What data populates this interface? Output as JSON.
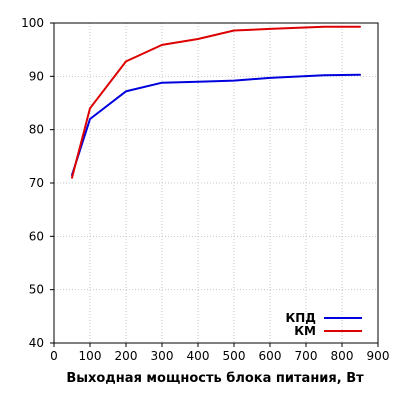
{
  "chart_data": {
    "type": "line",
    "title": "",
    "xlabel": "Выходная мощность блока питания, Вт",
    "ylabel": "",
    "xlim": [
      0,
      900
    ],
    "ylim": [
      40,
      100
    ],
    "x_ticks": [
      0,
      100,
      200,
      300,
      400,
      500,
      600,
      700,
      800,
      900
    ],
    "y_ticks": [
      40,
      50,
      60,
      70,
      80,
      90,
      100
    ],
    "grid": true,
    "legend_position": "bottom-right",
    "series": [
      {
        "name": "КПД",
        "color": "#0000dd",
        "x": [
          50,
          100,
          200,
          300,
          400,
          500,
          600,
          750,
          850
        ],
        "y": [
          71.5,
          82.0,
          87.2,
          88.8,
          89.0,
          89.2,
          89.7,
          90.2,
          90.3
        ]
      },
      {
        "name": "КМ",
        "color": "#dd0000",
        "x": [
          50,
          100,
          200,
          300,
          400,
          500,
          600,
          750,
          850
        ],
        "y": [
          71.0,
          84.0,
          92.8,
          95.9,
          97.0,
          98.6,
          98.9,
          99.3,
          99.3
        ]
      }
    ]
  }
}
